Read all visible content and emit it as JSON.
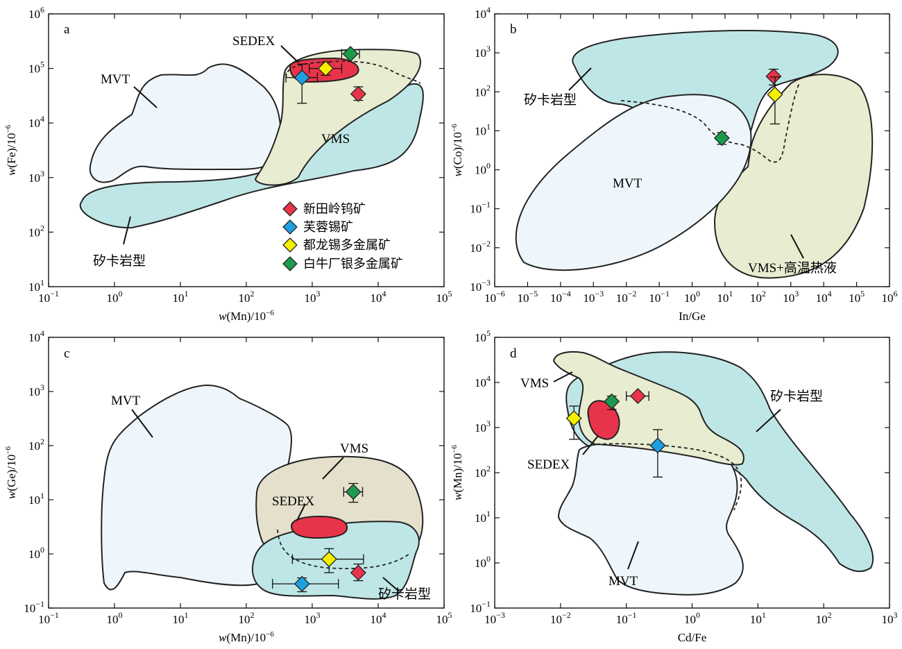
{
  "chart_data": [
    {
      "panel": "a",
      "type": "scatter",
      "xscale": "log",
      "yscale": "log",
      "xlim_exp": [
        -1,
        5
      ],
      "ylim_exp": [
        1,
        6
      ],
      "xlabel": {
        "italic": "w",
        "rest": "(Mn)/10",
        "sup": "−6"
      },
      "ylabel": {
        "italic": "w",
        "rest": "(Fe)/10",
        "sup": "−6"
      },
      "regions": [
        {
          "name": "MVT",
          "label": "MVT"
        },
        {
          "name": "skarn",
          "label": "矽卡岩型"
        },
        {
          "name": "VMS",
          "label": "VMS"
        },
        {
          "name": "SEDEX",
          "label": "SEDEX"
        }
      ],
      "legend_position": "bottom-center",
      "points": [
        {
          "series": "新田岭钨矿",
          "x": 5000,
          "y": 34000,
          "ylow": 26000,
          "yhigh": 46000
        },
        {
          "series": "芙蓉锡矿",
          "x": 700,
          "y": 68000,
          "xlow": 400,
          "xhigh": 1200,
          "ylow": 23000,
          "yhigh": 120000
        },
        {
          "series": "都龙锡多金属矿",
          "x": 1600,
          "y": 100000,
          "xlow": 900,
          "xhigh": 2800,
          "ylow": 75000,
          "yhigh": 130000
        },
        {
          "series": "白牛厂银多金属矿",
          "x": 3800,
          "y": 185000,
          "xlow": 2800,
          "xhigh": 5200
        }
      ]
    },
    {
      "panel": "b",
      "type": "scatter",
      "xscale": "log",
      "yscale": "log",
      "xlim_exp": [
        -6,
        6
      ],
      "ylim_exp": [
        -3,
        4
      ],
      "xlabel": {
        "italic": "",
        "rest": "In/Ge",
        "sup": ""
      },
      "ylabel": {
        "italic": "w",
        "rest": "(Co)/10",
        "sup": "−6"
      },
      "regions": [
        {
          "name": "skarn",
          "label": "矽卡岩型"
        },
        {
          "name": "MVT",
          "label": "MVT"
        },
        {
          "name": "VMS-high-temp",
          "label": "VMS+高温热液"
        }
      ],
      "points": [
        {
          "series": "新田岭钨矿",
          "x": 300,
          "y": 250,
          "ylow": 150,
          "yhigh": 380
        },
        {
          "series": "都龙锡多金属矿",
          "x": 330,
          "y": 85,
          "ylow": 15,
          "yhigh": 240
        },
        {
          "series": "白牛厂银多金属矿",
          "x": 8,
          "y": 6.5,
          "ylow": 4.5,
          "yhigh": 9
        }
      ]
    },
    {
      "panel": "c",
      "type": "scatter",
      "xscale": "log",
      "yscale": "log",
      "xlim_exp": [
        -1,
        5
      ],
      "ylim_exp": [
        -1,
        4
      ],
      "xlabel": {
        "italic": "w",
        "rest": "(Mn)/10",
        "sup": "−6"
      },
      "ylabel": {
        "italic": "w",
        "rest": "(Ge)/10",
        "sup": "−6"
      },
      "regions": [
        {
          "name": "MVT",
          "label": "MVT"
        },
        {
          "name": "VMS",
          "label": "VMS"
        },
        {
          "name": "SEDEX",
          "label": "SEDEX"
        },
        {
          "name": "skarn",
          "label": "矽卡岩型"
        }
      ],
      "points": [
        {
          "series": "新田岭钨矿",
          "x": 5000,
          "y": 0.45,
          "ylow": 0.32,
          "yhigh": 0.65
        },
        {
          "series": "芙蓉锡矿",
          "x": 700,
          "y": 0.28,
          "xlow": 250,
          "xhigh": 2500,
          "ylow": 0.2,
          "yhigh": 0.36
        },
        {
          "series": "都龙锡多金属矿",
          "x": 1800,
          "y": 0.8,
          "xlow": 500,
          "xhigh": 6000,
          "ylow": 0.45,
          "yhigh": 1.25
        },
        {
          "series": "白牛厂银多金属矿",
          "x": 4200,
          "y": 14,
          "xlow": 3000,
          "xhigh": 5800,
          "ylow": 9,
          "yhigh": 20
        }
      ]
    },
    {
      "panel": "d",
      "type": "scatter",
      "xscale": "log",
      "yscale": "log",
      "xlim_exp": [
        -3,
        3
      ],
      "ylim_exp": [
        -1,
        5
      ],
      "xlabel": {
        "italic": "",
        "rest": "Cd/Fe",
        "sup": ""
      },
      "ylabel": {
        "italic": "w",
        "rest": "(Mn)/10",
        "sup": "−6"
      },
      "regions": [
        {
          "name": "VMS",
          "label": "VMS"
        },
        {
          "name": "skarn",
          "label": "矽卡岩型"
        },
        {
          "name": "SEDEX",
          "label": "SEDEX"
        },
        {
          "name": "MVT",
          "label": "MVT"
        }
      ],
      "points": [
        {
          "series": "新田岭钨矿",
          "x": 0.15,
          "y": 5000,
          "xlow": 0.1,
          "xhigh": 0.22
        },
        {
          "series": "芙蓉锡矿",
          "x": 0.3,
          "y": 400,
          "ylow": 80,
          "yhigh": 900
        },
        {
          "series": "都龙锡多金属矿",
          "x": 0.016,
          "y": 1600,
          "ylow": 550,
          "yhigh": 3000
        },
        {
          "series": "白牛厂银多金属矿",
          "x": 0.06,
          "y": 3800,
          "ylow": 2500,
          "yhigh": 5000
        }
      ]
    }
  ],
  "legend": [
    {
      "label": "新田岭钨矿",
      "color": "#e8344a"
    },
    {
      "label": "芙蓉锡矿",
      "color": "#1ea0e0"
    },
    {
      "label": "都龙锡多金属矿",
      "color": "#f6f000"
    },
    {
      "label": "白牛厂银多金属矿",
      "color": "#1e9a4e"
    }
  ],
  "colors": {
    "MVT": "#eef6fb",
    "skarn": "#bfe6e6",
    "VMS": "#e8ecd0",
    "VMS_c": "#e5e0cc",
    "SEDEX": "#e8344a"
  }
}
